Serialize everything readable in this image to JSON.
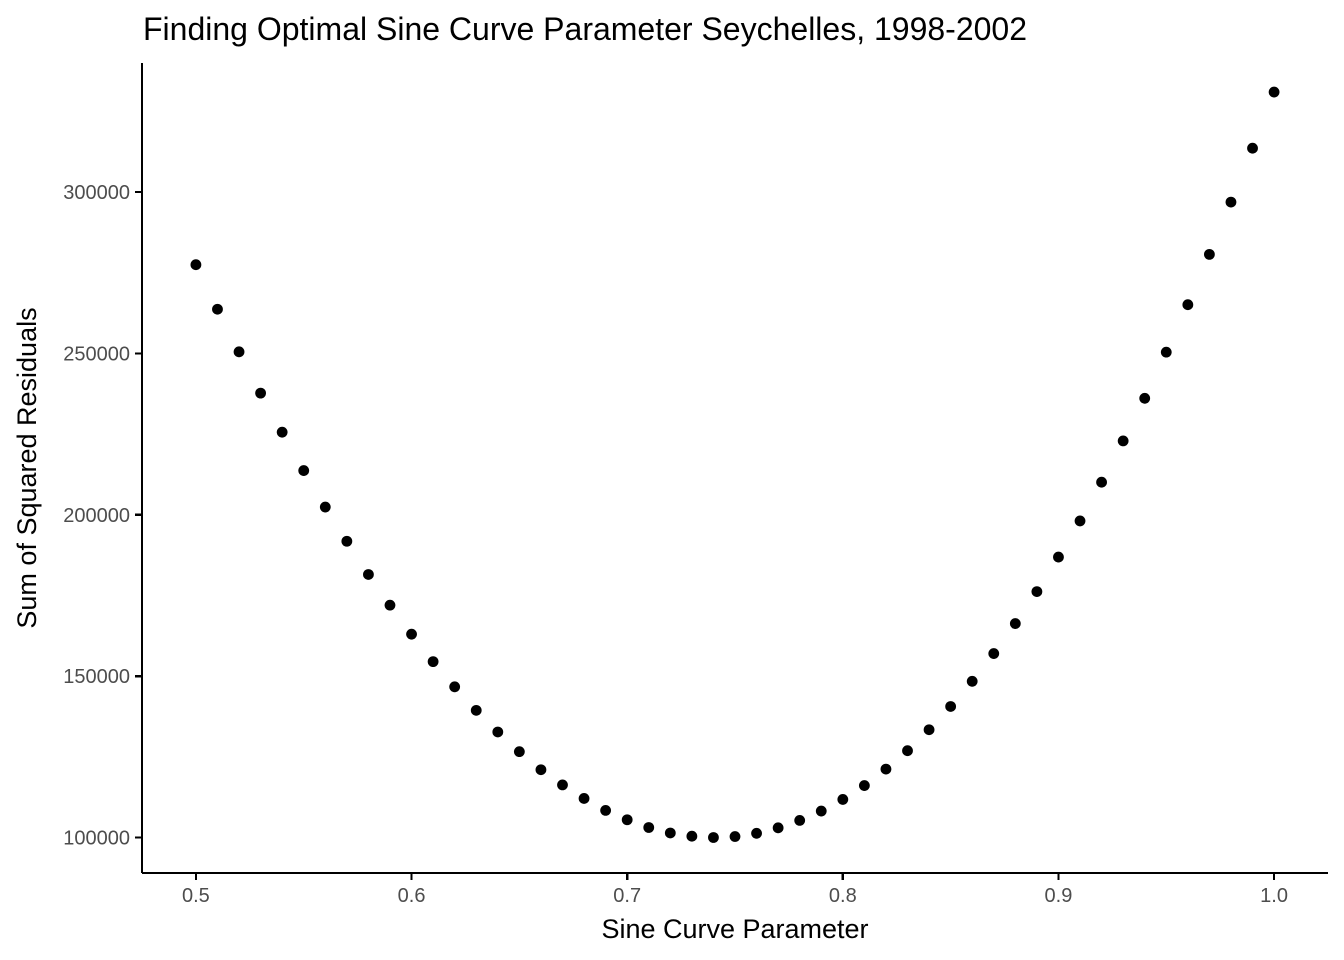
{
  "chart_data": {
    "type": "scatter",
    "title": "Finding Optimal Sine Curve Parameter Seychelles, 1998-2002",
    "xlabel": "Sine Curve Parameter",
    "ylabel": "Sum of Squared Residuals",
    "xlim": [
      0.475,
      1.025
    ],
    "ylim": [
      89000,
      340000
    ],
    "x_ticks": [
      0.5,
      0.6,
      0.7,
      0.8,
      0.9,
      1.0
    ],
    "x_tick_labels": [
      "0.5",
      "0.6",
      "0.7",
      "0.8",
      "0.9",
      "1.0"
    ],
    "y_ticks": [
      100000,
      150000,
      200000,
      250000,
      300000
    ],
    "y_tick_labels": [
      "100000",
      "150000",
      "200000",
      "250000",
      "300000"
    ],
    "grid": false,
    "legend": "none",
    "point_color": "#000000",
    "x": [
      0.5,
      0.51,
      0.52,
      0.53,
      0.54,
      0.55,
      0.56,
      0.57,
      0.58,
      0.59,
      0.6,
      0.61,
      0.62,
      0.63,
      0.64,
      0.65,
      0.66,
      0.67,
      0.68,
      0.69,
      0.7,
      0.71,
      0.72,
      0.73,
      0.74,
      0.75,
      0.76,
      0.77,
      0.78,
      0.79,
      0.8,
      0.81,
      0.82,
      0.83,
      0.84,
      0.85,
      0.86,
      0.87,
      0.88,
      0.89,
      0.9,
      0.91,
      0.92,
      0.93,
      0.94,
      0.95,
      0.96,
      0.97,
      0.98,
      0.99,
      1.0
    ],
    "y": [
      277500,
      263700,
      250500,
      237700,
      225600,
      213700,
      202400,
      191800,
      181500,
      172000,
      163000,
      154500,
      146700,
      139400,
      132700,
      126600,
      121000,
      116300,
      112100,
      108400,
      105500,
      103100,
      101400,
      100400,
      100000,
      100300,
      101300,
      103000,
      105300,
      108200,
      111800,
      116100,
      121200,
      126900,
      133400,
      140600,
      148400,
      157000,
      166300,
      176200,
      186900,
      198100,
      210100,
      222900,
      236100,
      250400,
      265100,
      280700,
      296900,
      313600,
      331000
    ]
  }
}
